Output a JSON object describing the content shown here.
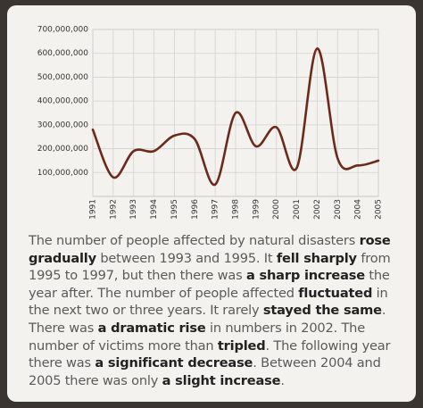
{
  "chart_data": {
    "type": "line",
    "categories": [
      "1991",
      "1992",
      "1993",
      "1994",
      "1995",
      "1996",
      "1997",
      "1998",
      "1999",
      "2000",
      "2001",
      "2002",
      "2003",
      "2004",
      "2005"
    ],
    "values": [
      280000000,
      80000000,
      190000000,
      190000000,
      255000000,
      240000000,
      50000000,
      350000000,
      210000000,
      290000000,
      120000000,
      620000000,
      160000000,
      130000000,
      150000000
    ],
    "color": "#6b2a1a",
    "ylim": [
      0,
      700000000
    ],
    "yticks": [
      {
        "value": 100000000,
        "label": "100,000,000"
      },
      {
        "value": 200000000,
        "label": "200,000,000"
      },
      {
        "value": 300000000,
        "label": "300,000,000"
      },
      {
        "value": 400000000,
        "label": "400,000,000"
      },
      {
        "value": 500000000,
        "label": "500,000,000"
      },
      {
        "value": 600000000,
        "label": "600,000,000"
      },
      {
        "value": 700000000,
        "label": "700,000,000"
      }
    ],
    "grid": true
  },
  "paragraph": [
    {
      "text": "The number of people affected by natural disasters ",
      "bold": false
    },
    {
      "text": "rose gradually",
      "bold": true
    },
    {
      "text": " between 1993 and 1995. It ",
      "bold": false
    },
    {
      "text": "fell sharply",
      "bold": true
    },
    {
      "text": " from 1995 to 1997, but then there was ",
      "bold": false
    },
    {
      "text": "a sharp increase",
      "bold": true
    },
    {
      "text": " the year after. The number of people affected ",
      "bold": false
    },
    {
      "text": "fluctuated",
      "bold": true
    },
    {
      "text": " in the next two or three years. It rarely ",
      "bold": false
    },
    {
      "text": "stayed the same",
      "bold": true
    },
    {
      "text": ". There was ",
      "bold": false
    },
    {
      "text": "a dramatic rise",
      "bold": true
    },
    {
      "text": " in numbers in 2002. The number of victims more than ",
      "bold": false
    },
    {
      "text": "tripled",
      "bold": true
    },
    {
      "text": ". The following year there was ",
      "bold": false
    },
    {
      "text": "a significant decrease",
      "bold": true
    },
    {
      "text": ". Between 2004 and 2005 there was only ",
      "bold": false
    },
    {
      "text": "a slight increase",
      "bold": true
    },
    {
      "text": ".",
      "bold": false
    }
  ]
}
